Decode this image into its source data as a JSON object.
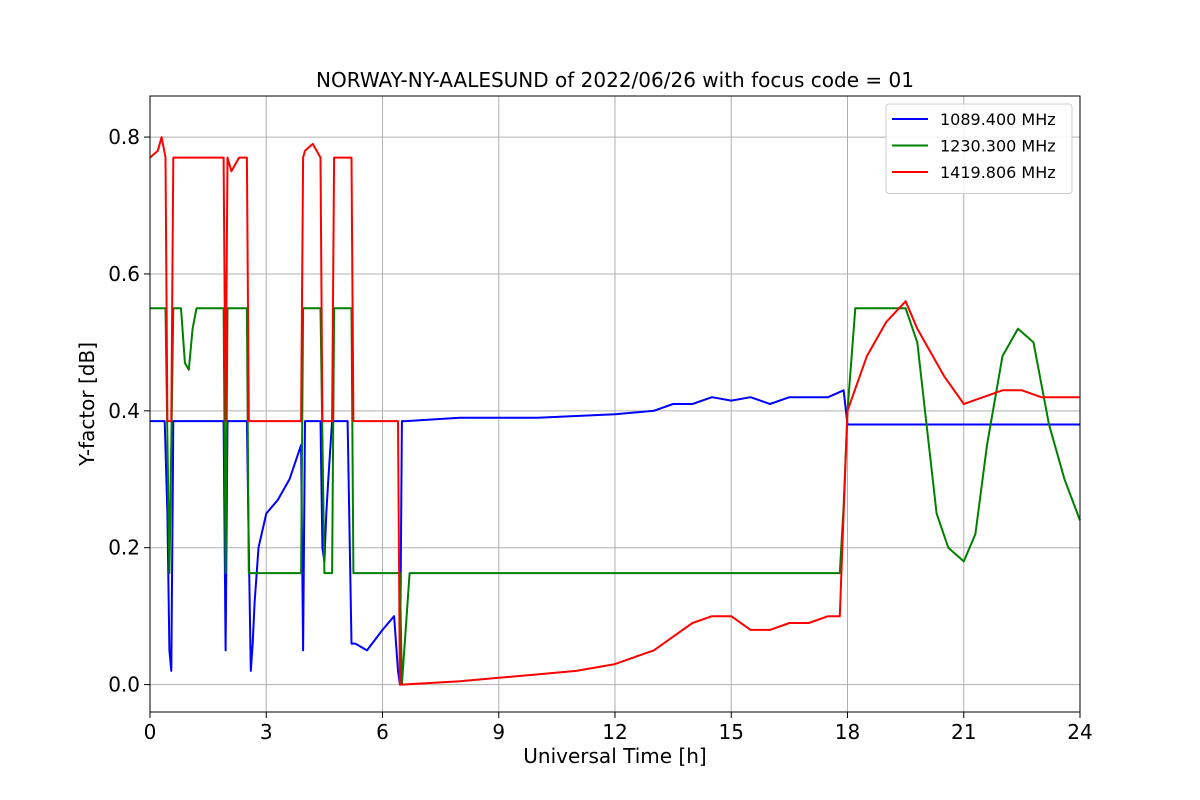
{
  "chart_data": {
    "type": "line",
    "title": "NORWAY-NY-AALESUND of 2022/06/26 with focus code = 01",
    "xlabel": "Universal Time [h]",
    "ylabel": "Y-factor [dB]",
    "xlim": [
      0,
      24
    ],
    "ylim": [
      -0.04,
      0.86
    ],
    "x_ticks": [
      0,
      3,
      6,
      9,
      12,
      15,
      18,
      21,
      24
    ],
    "y_ticks": [
      0.0,
      0.2,
      0.4,
      0.6,
      0.8
    ],
    "x_tick_labels": [
      "0",
      "3",
      "6",
      "9",
      "12",
      "15",
      "18",
      "21",
      "24"
    ],
    "y_tick_labels": [
      "0.0",
      "0.2",
      "0.4",
      "0.6",
      "0.8"
    ],
    "grid": true,
    "legend_position": "top-right",
    "series": [
      {
        "name": "1089.400 MHz",
        "color": "#0000ff",
        "x": [
          0.0,
          0.3,
          0.38,
          0.45,
          0.5,
          0.55,
          0.6,
          0.7,
          1.0,
          1.5,
          1.9,
          1.95,
          2.0,
          2.1,
          2.5,
          2.55,
          2.6,
          2.65,
          2.7,
          2.8,
          3.0,
          3.3,
          3.6,
          3.9,
          3.95,
          4.0,
          4.05,
          4.1,
          4.4,
          4.45,
          4.5,
          4.55,
          4.6,
          4.7,
          5.0,
          5.1,
          5.2,
          5.3,
          5.6,
          6.0,
          6.3,
          6.4,
          6.45,
          6.5,
          6.6,
          8.0,
          10.0,
          12.0,
          13.0,
          13.5,
          14.0,
          14.5,
          15.0,
          15.5,
          16.0,
          16.5,
          17.0,
          17.5,
          17.9,
          18.0,
          18.5,
          19.0,
          20.0,
          21.0,
          22.0,
          23.0,
          24.0
        ],
        "y": [
          0.385,
          0.385,
          0.385,
          0.25,
          0.05,
          0.02,
          0.385,
          0.385,
          0.385,
          0.385,
          0.385,
          0.05,
          0.385,
          0.385,
          0.385,
          0.2,
          0.02,
          0.06,
          0.12,
          0.2,
          0.25,
          0.27,
          0.3,
          0.35,
          0.05,
          0.385,
          0.385,
          0.385,
          0.385,
          0.2,
          0.18,
          0.25,
          0.3,
          0.385,
          0.385,
          0.385,
          0.06,
          0.06,
          0.05,
          0.08,
          0.1,
          0.02,
          0.0,
          0.385,
          0.385,
          0.39,
          0.39,
          0.395,
          0.4,
          0.41,
          0.41,
          0.42,
          0.415,
          0.42,
          0.41,
          0.42,
          0.42,
          0.42,
          0.43,
          0.38,
          0.38,
          0.38,
          0.38,
          0.38,
          0.38,
          0.38,
          0.38
        ]
      },
      {
        "name": "1230.300 MHz",
        "color": "#008000",
        "x": [
          0.0,
          0.35,
          0.4,
          0.5,
          0.6,
          0.7,
          0.8,
          0.9,
          1.0,
          1.1,
          1.2,
          1.5,
          1.7,
          1.9,
          1.95,
          2.0,
          2.2,
          2.5,
          2.55,
          2.6,
          3.0,
          3.5,
          3.9,
          3.95,
          4.0,
          4.4,
          4.5,
          4.7,
          4.75,
          4.8,
          5.2,
          5.25,
          5.3,
          6.0,
          6.45,
          6.5,
          6.7,
          8.0,
          12.0,
          16.0,
          17.8,
          17.9,
          18.0,
          18.2,
          19.0,
          19.5,
          19.8,
          20.0,
          20.3,
          20.6,
          21.0,
          21.3,
          21.6,
          22.0,
          22.4,
          22.8,
          23.2,
          23.6,
          24.0
        ],
        "y": [
          0.55,
          0.55,
          0.55,
          0.163,
          0.55,
          0.55,
          0.55,
          0.47,
          0.46,
          0.52,
          0.55,
          0.55,
          0.55,
          0.55,
          0.163,
          0.55,
          0.55,
          0.55,
          0.163,
          0.163,
          0.163,
          0.163,
          0.163,
          0.55,
          0.55,
          0.55,
          0.163,
          0.163,
          0.55,
          0.55,
          0.55,
          0.163,
          0.163,
          0.163,
          0.163,
          0.0,
          0.163,
          0.163,
          0.163,
          0.163,
          0.163,
          0.26,
          0.4,
          0.55,
          0.55,
          0.55,
          0.5,
          0.4,
          0.25,
          0.2,
          0.18,
          0.22,
          0.35,
          0.48,
          0.52,
          0.5,
          0.38,
          0.3,
          0.24
        ]
      },
      {
        "name": "1419.806 MHz",
        "color": "#ff0000",
        "x": [
          0.0,
          0.2,
          0.3,
          0.4,
          0.45,
          0.5,
          0.55,
          0.6,
          0.7,
          1.0,
          1.5,
          1.9,
          1.95,
          2.0,
          2.1,
          2.3,
          2.5,
          2.55,
          2.6,
          3.0,
          3.5,
          3.9,
          3.95,
          4.0,
          4.2,
          4.4,
          4.45,
          4.5,
          4.7,
          4.75,
          4.8,
          5.0,
          5.2,
          5.25,
          5.3,
          6.0,
          6.4,
          6.45,
          6.5,
          8.0,
          9.0,
          10.0,
          11.0,
          12.0,
          12.5,
          13.0,
          13.5,
          14.0,
          14.5,
          15.0,
          15.5,
          16.0,
          16.5,
          17.0,
          17.5,
          17.8,
          17.9,
          18.0,
          18.5,
          19.0,
          19.5,
          19.8,
          20.0,
          20.5,
          21.0,
          21.5,
          22.0,
          22.5,
          23.0,
          23.5,
          24.0
        ],
        "y": [
          0.77,
          0.78,
          0.8,
          0.77,
          0.385,
          0.385,
          0.385,
          0.77,
          0.77,
          0.77,
          0.77,
          0.77,
          0.385,
          0.77,
          0.75,
          0.77,
          0.77,
          0.385,
          0.385,
          0.385,
          0.385,
          0.385,
          0.77,
          0.78,
          0.79,
          0.77,
          0.385,
          0.385,
          0.385,
          0.77,
          0.77,
          0.77,
          0.77,
          0.385,
          0.385,
          0.385,
          0.385,
          0.0,
          0.0,
          0.005,
          0.01,
          0.015,
          0.02,
          0.03,
          0.04,
          0.05,
          0.07,
          0.09,
          0.1,
          0.1,
          0.08,
          0.08,
          0.09,
          0.09,
          0.1,
          0.1,
          0.25,
          0.4,
          0.48,
          0.53,
          0.56,
          0.52,
          0.5,
          0.45,
          0.41,
          0.42,
          0.43,
          0.43,
          0.42,
          0.42,
          0.42
        ]
      }
    ]
  }
}
